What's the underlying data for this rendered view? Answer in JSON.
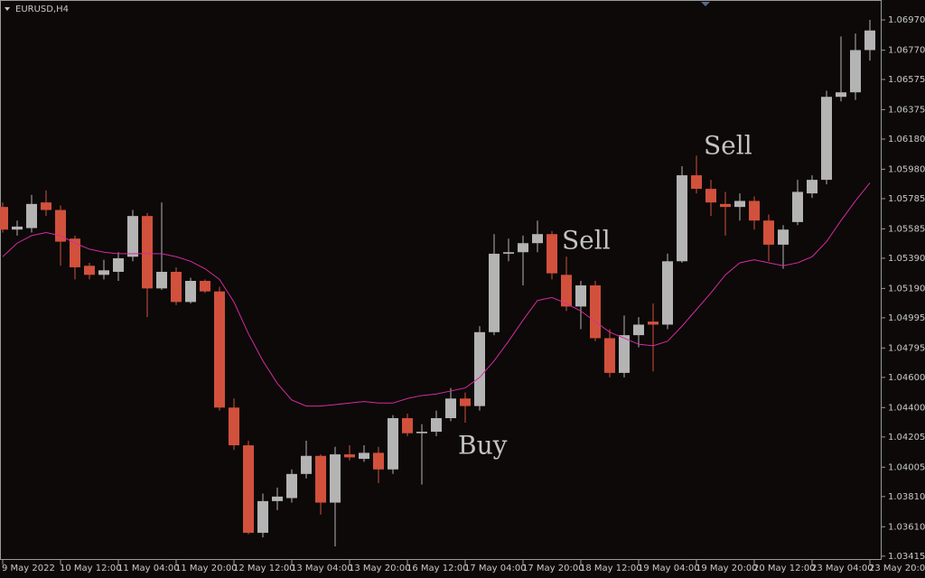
{
  "chart_data": {
    "type": "candlestick",
    "title": "EURUSD,H4",
    "categories": [
      "9 May 2022",
      null,
      null,
      null,
      "10 May 12:00",
      null,
      null,
      null,
      "11 May 04:00",
      null,
      null,
      null,
      "11 May 20:00",
      null,
      null,
      null,
      "12 May 12:00",
      null,
      null,
      null,
      "13 May 04:00",
      null,
      null,
      null,
      "13 May 20:00",
      null,
      null,
      null,
      "16 May 12:00",
      null,
      null,
      null,
      "17 May 04:00",
      null,
      null,
      null,
      "17 May 20:00",
      null,
      null,
      null,
      "18 May 12:00",
      null,
      null,
      null,
      "19 May 04:00",
      null,
      null,
      null,
      "19 May 20:00",
      null,
      null,
      null,
      "20 May 12:00",
      null,
      null,
      null,
      "23 May 04:00",
      null,
      null,
      null,
      "23 May 20:00"
    ],
    "open": [
      1.0573,
      1.0558,
      1.0559,
      1.0576,
      1.0571,
      1.0552,
      1.0534,
      1.0528,
      1.053,
      1.054,
      1.0567,
      1.0519,
      1.053,
      1.051,
      1.0524,
      1.0517,
      1.044,
      1.0415,
      1.0357,
      1.0378,
      1.038,
      1.0396,
      1.0408,
      1.0377,
      1.0409,
      1.0406,
      1.041,
      1.0399,
      1.0433,
      1.0423,
      1.0424,
      1.0433,
      1.0446,
      1.0441,
      1.049,
      1.0542,
      1.0543,
      1.0549,
      1.0555,
      1.0528,
      1.0507,
      1.0521,
      1.0486,
      1.0463,
      1.0488,
      1.0497,
      1.0495,
      1.0537,
      1.0594,
      1.0585,
      1.0575,
      1.0573,
      1.0577,
      1.0564,
      1.0548,
      1.0563,
      1.0582,
      1.0591,
      1.0646,
      1.0649,
      1.0677
    ],
    "high": [
      1.0576,
      1.0564,
      1.0581,
      1.0584,
      1.0574,
      1.0554,
      1.0536,
      1.0538,
      1.0543,
      1.0571,
      1.0569,
      1.0576,
      1.0533,
      1.0526,
      1.0525,
      1.052,
      1.0446,
      1.0418,
      1.0383,
      1.0387,
      1.0399,
      1.0418,
      1.0409,
      1.0414,
      1.0415,
      1.0415,
      1.0414,
      1.0435,
      1.0436,
      1.0429,
      1.0438,
      1.0453,
      1.045,
      1.0494,
      1.0555,
      1.0552,
      1.0554,
      1.0564,
      1.0557,
      1.054,
      1.0524,
      1.0524,
      1.0492,
      1.0501,
      1.05,
      1.0509,
      1.0542,
      1.06,
      1.0607,
      1.0591,
      1.0583,
      1.0582,
      1.058,
      1.0568,
      1.0561,
      1.0591,
      1.0594,
      1.065,
      1.0686,
      1.0688,
      1.0697
    ],
    "low": [
      1.0556,
      1.0554,
      1.0556,
      1.0567,
      1.0534,
      1.0525,
      1.0525,
      1.0525,
      1.0524,
      1.0537,
      1.05,
      1.0518,
      1.0508,
      1.0509,
      1.0516,
      1.0438,
      1.0412,
      1.0356,
      1.0354,
      1.0372,
      1.0377,
      1.0393,
      1.0369,
      1.0348,
      1.0405,
      1.0404,
      1.039,
      1.0396,
      1.0421,
      1.0389,
      1.0421,
      1.0431,
      1.043,
      1.0438,
      1.0488,
      1.0537,
      1.0521,
      1.0543,
      1.0525,
      1.0504,
      1.0492,
      1.0484,
      1.046,
      1.046,
      1.048,
      1.0464,
      1.0492,
      1.0536,
      1.0582,
      1.0567,
      1.0554,
      1.0564,
      1.0558,
      1.0537,
      1.0532,
      1.0561,
      1.0579,
      1.0588,
      1.0643,
      1.0644,
      1.067
    ],
    "close": [
      1.0558,
      1.056,
      1.0575,
      1.0571,
      1.055,
      1.0533,
      1.0528,
      1.0531,
      1.0539,
      1.0567,
      1.0519,
      1.053,
      1.051,
      1.0524,
      1.0517,
      1.044,
      1.0415,
      1.0357,
      1.0378,
      1.0381,
      1.0396,
      1.0408,
      1.0377,
      1.0409,
      1.0407,
      1.041,
      1.0399,
      1.0433,
      1.0423,
      1.0424,
      1.0433,
      1.0446,
      1.0441,
      1.049,
      1.0542,
      1.0543,
      1.0549,
      1.0555,
      1.0529,
      1.0507,
      1.0521,
      1.0486,
      1.0463,
      1.0488,
      1.0495,
      1.0495,
      1.0537,
      1.0594,
      1.0585,
      1.0576,
      1.0573,
      1.0577,
      1.0564,
      1.0548,
      1.0558,
      1.0583,
      1.0591,
      1.0646,
      1.0649,
      1.0677,
      1.069
    ],
    "up_color": "#b4b4b4",
    "down_color": "#d2513c",
    "overlay": {
      "type": "line",
      "color": "#d62aa0",
      "values": [
        1.054,
        1.0549,
        1.0554,
        1.0556,
        1.0554,
        1.0549,
        1.0545,
        1.0543,
        1.0542,
        1.0542,
        1.0542,
        1.0542,
        1.054,
        1.0537,
        1.0532,
        1.0525,
        1.051,
        1.0489,
        1.0471,
        1.0456,
        1.0445,
        1.0441,
        1.0441,
        1.0442,
        1.0443,
        1.0444,
        1.0443,
        1.0443,
        1.0446,
        1.0448,
        1.0449,
        1.0451,
        1.0453,
        1.046,
        1.0471,
        1.0484,
        1.0498,
        1.0511,
        1.0513,
        1.0509,
        1.0504,
        1.0497,
        1.049,
        1.0486,
        1.0482,
        1.0481,
        1.0484,
        1.0494,
        1.0505,
        1.0516,
        1.0528,
        1.0536,
        1.0538,
        1.0536,
        1.0534,
        1.0536,
        1.054,
        1.055,
        1.0564,
        1.0577,
        1.0589
      ]
    },
    "ylim": [
      1.0339,
      1.0709
    ],
    "yticks": [
      {
        "value": 1.0697,
        "label": "1.06970"
      },
      {
        "value": 1.0677,
        "label": "1.06770"
      },
      {
        "value": 1.06575,
        "label": "1.06575"
      },
      {
        "value": 1.06375,
        "label": "1.06375"
      },
      {
        "value": 1.0618,
        "label": "1.06180"
      },
      {
        "value": 1.0598,
        "label": "1.05980"
      },
      {
        "value": 1.05785,
        "label": "1.05785"
      },
      {
        "value": 1.05585,
        "label": "1.05585"
      },
      {
        "value": 1.0539,
        "label": "1.05390"
      },
      {
        "value": 1.0519,
        "label": "1.05190"
      },
      {
        "value": 1.04995,
        "label": "1.04995"
      },
      {
        "value": 1.04795,
        "label": "1.04795"
      },
      {
        "value": 1.046,
        "label": "1.04600"
      },
      {
        "value": 1.044,
        "label": "1.04400"
      },
      {
        "value": 1.04205,
        "label": "1.04205"
      },
      {
        "value": 1.04005,
        "label": "1.04005"
      },
      {
        "value": 1.0381,
        "label": "1.03810"
      },
      {
        "value": 1.0361,
        "label": "1.03610"
      },
      {
        "value": 1.03415,
        "label": "1.03415"
      }
    ],
    "annotations": [
      "Sell",
      "Sell",
      "Buy"
    ]
  }
}
